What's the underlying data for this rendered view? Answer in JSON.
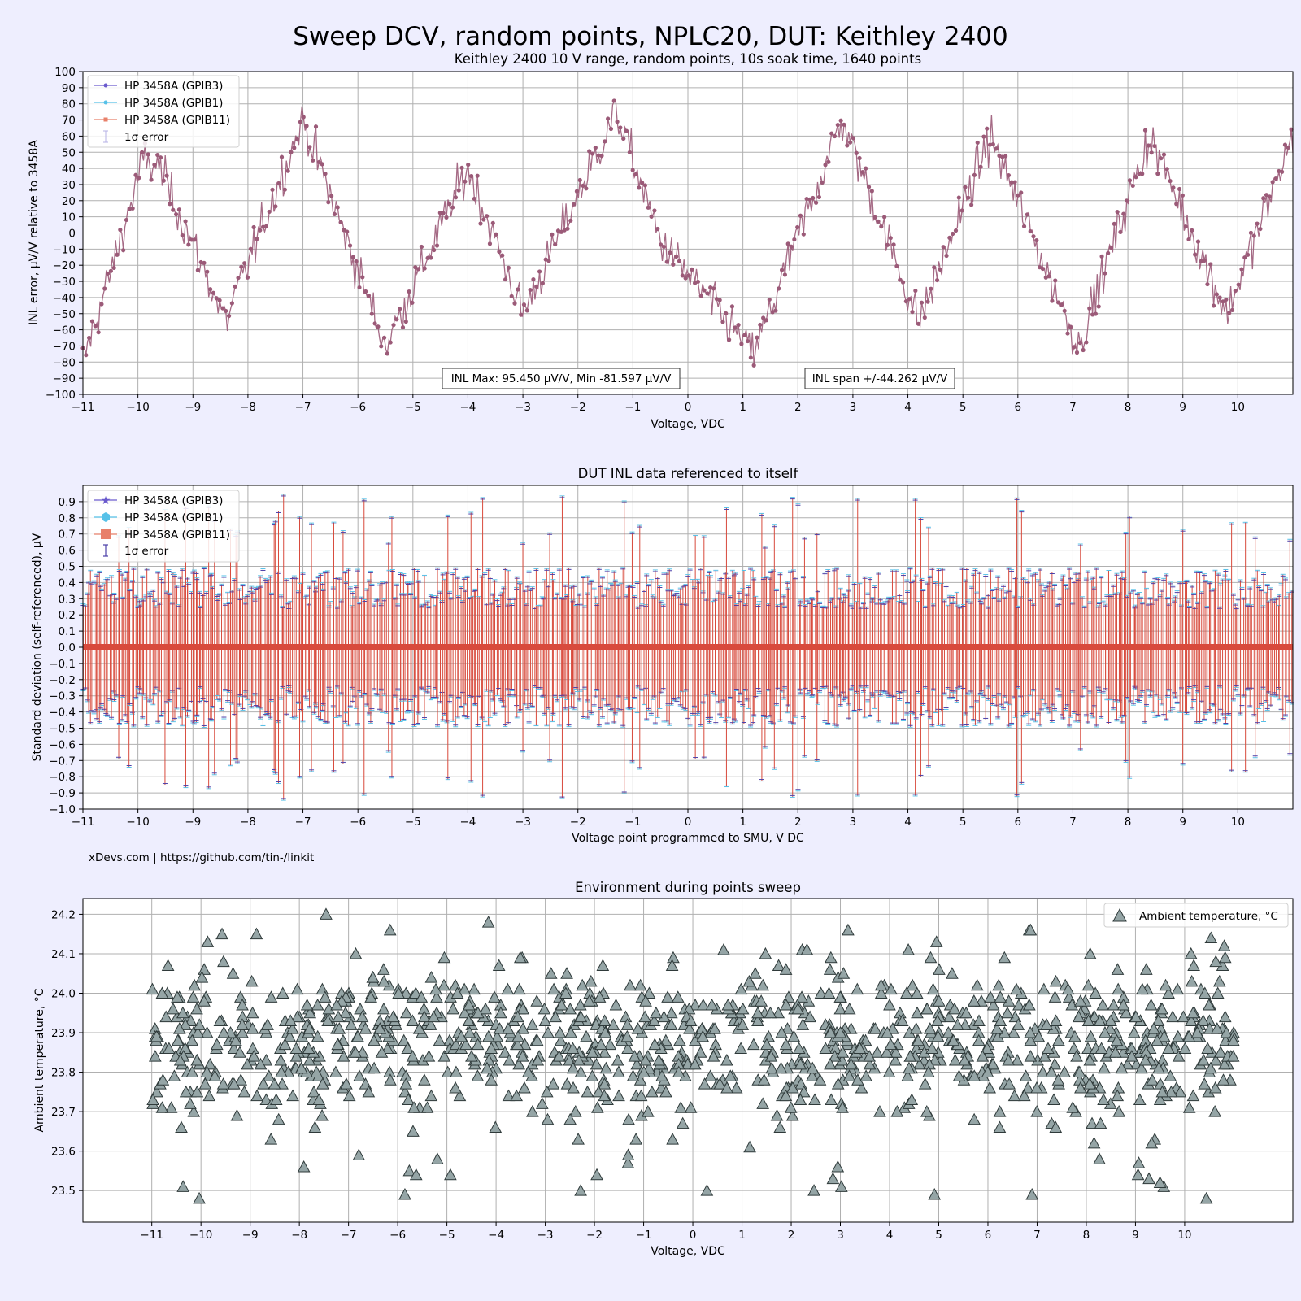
{
  "figure": {
    "title": "Sweep DCV, random points, NPLC20, DUT: Keithley 2400",
    "footer": "xDevs.com | https://github.com/tin-/linkit",
    "background": "#eeeefe"
  },
  "chart_data": [
    {
      "type": "line",
      "title": "Keithley 2400 10 V range, random points, 10s soak time, 1640 points",
      "xlabel": "Voltage, VDC",
      "ylabel": "INL error, µV/V relative to 3458A",
      "xlim": [
        -11,
        11
      ],
      "ylim": [
        -100,
        100
      ],
      "xticks": [
        -11,
        -10,
        -9,
        -8,
        -7,
        -6,
        -5,
        -4,
        -3,
        -2,
        -1,
        0,
        1,
        2,
        3,
        4,
        5,
        6,
        7,
        8,
        9,
        10
      ],
      "yticks": [
        -100,
        -90,
        -80,
        -70,
        -60,
        -50,
        -40,
        -30,
        -20,
        -10,
        0,
        10,
        20,
        30,
        40,
        50,
        60,
        70,
        80,
        90,
        100
      ],
      "grid": true,
      "legend_position": "top-left",
      "series": [
        {
          "name": "HP 3458A (GPIB3)",
          "color": "#6a5acd",
          "marker": "circle"
        },
        {
          "name": "HP 3458A (GPIB1)",
          "color": "#56c1e8",
          "marker": "circle"
        },
        {
          "name": "HP 3458A (GPIB11)",
          "color": "#e8806a",
          "marker": "square"
        }
      ],
      "errorbar_legend": "1σ error",
      "trace_color": "#9b5a78",
      "profile_x": [
        -11,
        -10.5,
        -9.9,
        -9.6,
        -8.4,
        -7.0,
        -5.5,
        -4.0,
        -3.0,
        -1.3,
        -0.5,
        1.2,
        2.8,
        4.2,
        5.5,
        7.1,
        8.4,
        9.8,
        11
      ],
      "profile_y": [
        -80,
        -25,
        45,
        40,
        -55,
        70,
        -70,
        40,
        -50,
        75,
        -5,
        -75,
        70,
        -55,
        60,
        -70,
        60,
        -50,
        60
      ],
      "annotations": [
        "INL Max: 95.450 µV/V, Min -81.597 µV/V",
        "INL span +/-44.262 µV/V"
      ]
    },
    {
      "type": "scatter",
      "title": "DUT INL data referenced to itself",
      "xlabel": "Voltage point programmed to SMU, V DC",
      "ylabel": "Standard deviation (self-referenced), µV",
      "xlim": [
        -11,
        11
      ],
      "ylim": [
        -1.0,
        1.0
      ],
      "xticks": [
        -11,
        -10,
        -9,
        -8,
        -7,
        -6,
        -5,
        -4,
        -3,
        -2,
        -1,
        0,
        1,
        2,
        3,
        4,
        5,
        6,
        7,
        8,
        9,
        10
      ],
      "yticks": [
        -1.0,
        -0.9,
        -0.8,
        -0.7,
        -0.6,
        -0.5,
        -0.4,
        -0.3,
        -0.2,
        -0.1,
        0.0,
        0.1,
        0.2,
        0.3,
        0.4,
        0.5,
        0.6,
        0.7,
        0.8,
        0.9
      ],
      "grid": true,
      "legend_position": "top-left",
      "series": [
        {
          "name": "HP 3458A (GPIB3)",
          "color": "#6a5acd",
          "marker": "star"
        },
        {
          "name": "HP 3458A (GPIB1)",
          "color": "#56c1e8",
          "marker": "hexagon"
        },
        {
          "name": "HP 3458A (GPIB11)",
          "color": "#e8806a",
          "marker": "square"
        }
      ],
      "errorbar_legend": "1σ error",
      "errorbar_color": "#d84a3c",
      "typical_sigma": 0.45,
      "max_sigma": 0.95
    },
    {
      "type": "scatter",
      "title": "Environment during points sweep",
      "xlabel": "Voltage, VDC",
      "ylabel": "Ambient temperature, °C",
      "xlim": [
        -12.4,
        12.2
      ],
      "ylim": [
        23.42,
        24.24
      ],
      "xticks": [
        -11,
        -10,
        -9,
        -8,
        -7,
        -6,
        -5,
        -4,
        -3,
        -2,
        -1,
        0,
        1,
        2,
        3,
        4,
        5,
        6,
        7,
        8,
        9,
        10
      ],
      "yticks": [
        23.5,
        23.6,
        23.7,
        23.8,
        23.9,
        24.0,
        24.1,
        24.2
      ],
      "grid": true,
      "legend_position": "top-right",
      "series": [
        {
          "name": "Ambient temperature, °C",
          "color": "#95a5a6",
          "marker": "triangle"
        }
      ],
      "x_range": [
        -11,
        11
      ],
      "y_range": [
        23.47,
        24.21
      ],
      "y_center": 23.88
    }
  ]
}
